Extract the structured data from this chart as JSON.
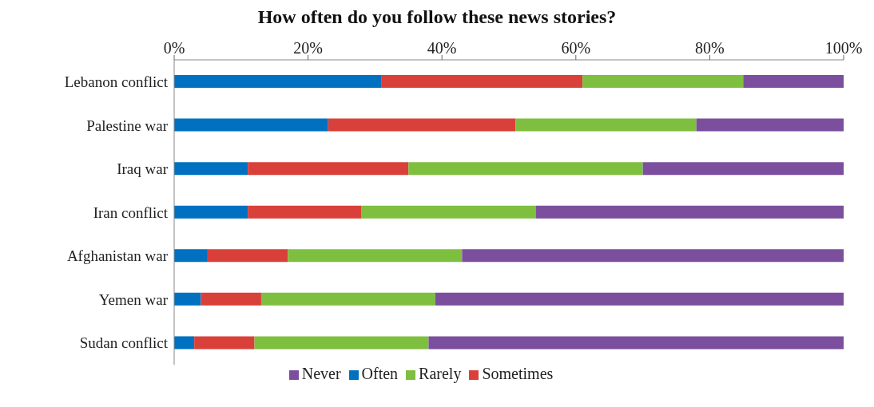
{
  "chart_data": {
    "type": "bar",
    "orientation": "horizontal",
    "stacked": true,
    "title": "How often do you follow these news stories?",
    "categories": [
      "Lebanon conflict",
      "Palestine war",
      "Iraq war",
      "Iran conflict",
      "Afghanistan war",
      "Yemen war",
      "Sudan conflict"
    ],
    "series": [
      {
        "name": "Often",
        "color": "#0070c0",
        "values": [
          31,
          23,
          11,
          11,
          5,
          4,
          3
        ]
      },
      {
        "name": "Sometimes",
        "color": "#d9403a",
        "values": [
          30,
          28,
          24,
          17,
          12,
          9,
          9
        ]
      },
      {
        "name": "Rarely",
        "color": "#7fbf3f",
        "values": [
          24,
          27,
          35,
          26,
          26,
          26,
          26
        ]
      },
      {
        "name": "Never",
        "color": "#7b4f9e",
        "values": [
          15,
          22,
          30,
          46,
          57,
          61,
          62
        ]
      }
    ],
    "xlim": [
      0,
      100
    ],
    "xticks": [
      {
        "value": 0,
        "label": "0%"
      },
      {
        "value": 20,
        "label": "20%"
      },
      {
        "value": 40,
        "label": "40%"
      },
      {
        "value": 60,
        "label": "60%"
      },
      {
        "value": 80,
        "label": "80%"
      },
      {
        "value": 100,
        "label": "100%"
      }
    ],
    "grid": false,
    "legend": "bottom"
  }
}
